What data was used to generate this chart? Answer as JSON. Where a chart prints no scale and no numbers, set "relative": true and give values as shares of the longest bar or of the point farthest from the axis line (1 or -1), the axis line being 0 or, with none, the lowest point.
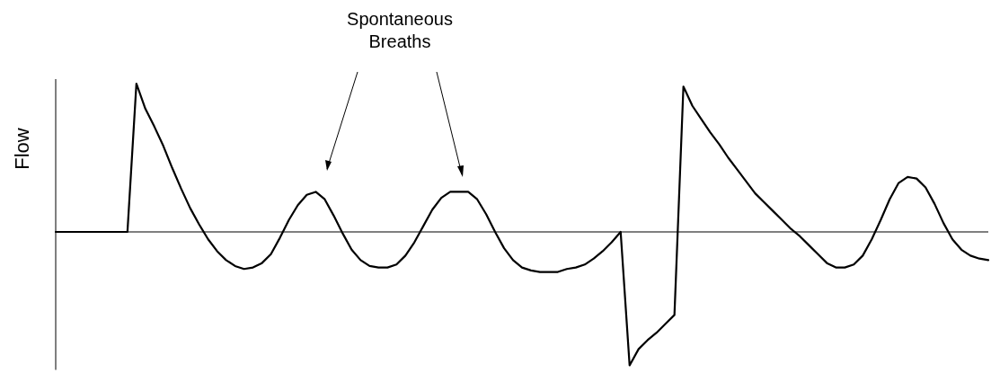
{
  "chart_data": {
    "type": "line",
    "relative": true,
    "ylabel": "Flow",
    "annotations": [
      "Spontaneous Breaths"
    ],
    "categories": [
      null,
      null,
      null,
      null,
      null,
      null,
      null,
      null,
      null,
      null,
      null,
      null,
      null,
      null,
      null,
      null,
      null,
      null,
      null,
      null,
      null,
      null,
      null,
      null,
      null,
      null,
      null,
      null,
      null,
      null,
      null,
      null,
      null,
      null,
      null,
      null,
      null,
      null,
      null,
      null,
      null,
      null,
      null,
      null,
      null,
      null,
      null,
      null,
      null,
      null,
      null,
      null,
      null,
      null,
      null,
      null,
      null,
      null,
      null,
      null,
      null,
      null,
      null,
      null,
      null,
      null,
      null,
      null,
      null,
      null,
      null,
      null,
      null,
      null,
      null,
      null,
      null,
      null,
      null,
      null,
      null,
      null,
      null,
      null,
      null,
      null,
      null,
      null,
      null,
      null,
      null,
      null,
      null,
      null,
      null,
      null,
      null,
      null,
      null,
      null,
      null,
      null,
      null,
      null,
      null
    ],
    "series": [
      {
        "color": "#000000",
        "values": [
          0,
          0,
          0,
          0,
          0,
          0,
          0,
          0,
          0,
          1.0,
          0.83,
          0.71,
          0.58,
          0.43,
          0.29,
          0.16,
          0.05,
          -0.05,
          -0.13,
          -0.19,
          -0.23,
          -0.25,
          -0.24,
          -0.21,
          -0.15,
          -0.04,
          0.08,
          0.18,
          0.25,
          0.27,
          0.22,
          0.11,
          -0.01,
          -0.12,
          -0.19,
          -0.23,
          -0.24,
          -0.24,
          -0.22,
          -0.16,
          -0.07,
          0.04,
          0.15,
          0.23,
          0.27,
          0.27,
          0.27,
          0.22,
          0.12,
          0,
          -0.11,
          -0.19,
          -0.24,
          -0.26,
          -0.27,
          -0.27,
          -0.27,
          -0.25,
          -0.24,
          -0.22,
          -0.18,
          -0.13,
          -0.07,
          0,
          -0.9,
          -0.79,
          -0.73,
          -0.68,
          -0.62,
          -0.56,
          0.98,
          0.85,
          0.76,
          0.67,
          0.59,
          0.5,
          0.42,
          0.34,
          0.26,
          0.2,
          0.14,
          0.08,
          0.02,
          -0.03,
          -0.09,
          -0.15,
          -0.21,
          -0.24,
          -0.24,
          -0.22,
          -0.16,
          -0.05,
          0.08,
          0.22,
          0.33,
          0.37,
          0.36,
          0.3,
          0.19,
          0.06,
          -0.05,
          -0.12,
          -0.16,
          -0.18,
          -0.19
        ]
      }
    ]
  }
}
